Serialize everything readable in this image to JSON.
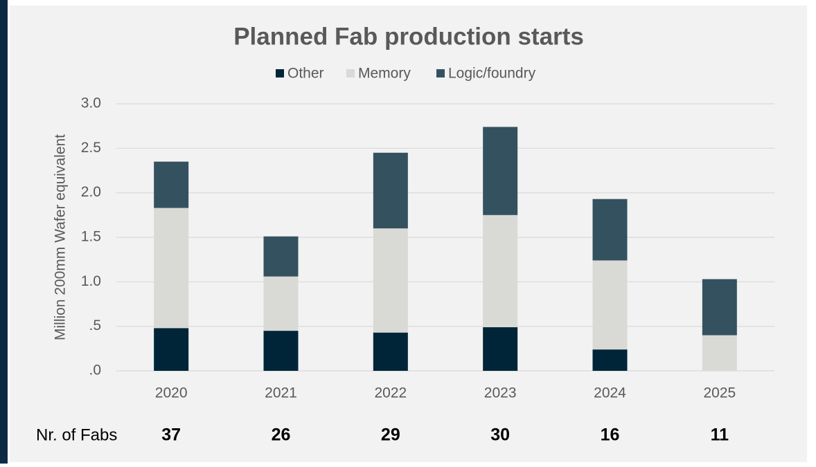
{
  "chart_data": {
    "type": "stacked_bar",
    "title": "Planned Fab production starts",
    "y_label": "Million 200mm Wafer equivalent",
    "categories": [
      "2020",
      "2021",
      "2022",
      "2023",
      "2024",
      "2025"
    ],
    "series": [
      {
        "name": "Other",
        "color": "#002538",
        "values": [
          0.48,
          0.45,
          0.43,
          0.49,
          0.24,
          0
        ]
      },
      {
        "name": "Memory",
        "color": "#d9d9d6",
        "values": [
          1.35,
          0.61,
          1.17,
          1.26,
          1.0,
          0.4
        ]
      },
      {
        "name": "Logic/foundry",
        "color": "#34515f",
        "values": [
          0.52,
          0.45,
          0.85,
          0.99,
          0.69,
          0.63
        ]
      }
    ],
    "ylim": [
      0,
      3
    ],
    "yticks": [
      {
        "value": 0,
        "label": ".0"
      },
      {
        "value": 0.5,
        "label": ".5"
      },
      {
        "value": 1,
        "label": "1.0"
      },
      {
        "value": 1.5,
        "label": "1.5"
      },
      {
        "value": 2,
        "label": "2.0"
      },
      {
        "value": 2.5,
        "label": "2.5"
      },
      {
        "value": 3,
        "label": "3.0"
      }
    ],
    "grid": true,
    "legend": "top",
    "fabs_label": "Nr. of Fabs",
    "fab_counts": [
      37,
      26,
      29,
      30,
      16,
      11
    ]
  }
}
